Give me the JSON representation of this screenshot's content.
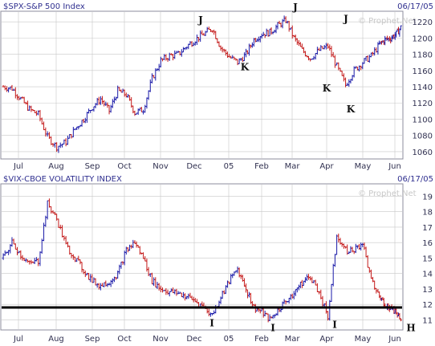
{
  "watermark": "© Prophet.Net",
  "x_labels": [
    "Jul",
    "Aug",
    "Sep",
    "Oct",
    "Nov",
    "Dec",
    "05",
    "Feb",
    "Mar",
    "Apr",
    "May",
    "Jun"
  ],
  "colors": {
    "up": "#1a1aa8",
    "down": "#c41a1a",
    "grid": "#c8c8c8",
    "frame": "#8c8c9c",
    "support_line": "#000000",
    "text": "#2f2f8f"
  },
  "chart_data": [
    {
      "type": "ohlc",
      "title": "$SPX-S&P 500 Index",
      "date": "06/17/05",
      "yticks": [
        1060,
        1080,
        1100,
        1120,
        1140,
        1160,
        1180,
        1200,
        1220
      ],
      "ylim": [
        1052,
        1233
      ],
      "points_per_month": [
        {
          "month": "Jul",
          "anchors": [
            1140,
            1138,
            1125,
            1112,
            1106
          ]
        },
        {
          "month": "Aug",
          "anchors": [
            1106,
            1078,
            1066,
            1072,
            1088
          ]
        },
        {
          "month": "Sep",
          "anchors": [
            1088,
            1100,
            1115,
            1125,
            1110
          ]
        },
        {
          "month": "Oct",
          "anchors": [
            1110,
            1135,
            1130,
            1108,
            1112
          ]
        },
        {
          "month": "Nov",
          "anchors": [
            1112,
            1150,
            1172,
            1178,
            1180
          ]
        },
        {
          "month": "Dec",
          "anchors": [
            1180,
            1190,
            1198,
            1205,
            1212
          ]
        },
        {
          "month": "05",
          "anchors": [
            1212,
            1188,
            1177,
            1170,
            1180
          ]
        },
        {
          "month": "Feb",
          "anchors": [
            1180,
            1198,
            1205,
            1207,
            1215
          ]
        },
        {
          "month": "Mar",
          "anchors": [
            1215,
            1222,
            1200,
            1185,
            1175
          ]
        },
        {
          "month": "Apr",
          "anchors": [
            1175,
            1185,
            1190,
            1165,
            1142
          ]
        },
        {
          "month": "May",
          "anchors": [
            1142,
            1160,
            1170,
            1178,
            1192
          ]
        },
        {
          "month": "Jun",
          "anchors": [
            1192,
            1198,
            1200,
            1205,
            1215
          ]
        }
      ],
      "annotations": [
        {
          "label": "J",
          "month": "Dec"
        },
        {
          "label": "K",
          "month": "05"
        },
        {
          "label": "J",
          "month": "Mar"
        },
        {
          "label": "K",
          "month": "Apr"
        },
        {
          "label": "J",
          "month": "Apr"
        },
        {
          "label": "K",
          "month": "Apr"
        }
      ]
    },
    {
      "type": "ohlc",
      "title": "$VIX-CBOE VOLATILITY INDEX",
      "date": "06/17/05",
      "yticks": [
        11,
        12,
        13,
        14,
        15,
        16,
        17,
        18,
        19
      ],
      "ylim": [
        10.4,
        19.8
      ],
      "support_line": 11.8,
      "points_per_month": [
        {
          "month": "Jul",
          "anchors": [
            15.0,
            16.0,
            15.2,
            14.6,
            14.8
          ]
        },
        {
          "month": "Aug",
          "anchors": [
            14.8,
            18.5,
            17.5,
            15.8,
            15.0
          ]
        },
        {
          "month": "Sep",
          "anchors": [
            15.0,
            14.2,
            13.5,
            13.2,
            13.5
          ]
        },
        {
          "month": "Oct",
          "anchors": [
            13.5,
            14.0,
            15.5,
            16.0,
            15.0
          ]
        },
        {
          "month": "Nov",
          "anchors": [
            15.0,
            13.5,
            13.0,
            12.8,
            12.7
          ]
        },
        {
          "month": "Dec",
          "anchors": [
            12.7,
            12.5,
            12.2,
            11.8,
            11.3
          ]
        },
        {
          "month": "05",
          "anchors": [
            11.3,
            12.5,
            13.5,
            14.3,
            13.0
          ]
        },
        {
          "month": "Feb",
          "anchors": [
            13.0,
            11.8,
            11.5,
            11.0,
            11.6
          ]
        },
        {
          "month": "Mar",
          "anchors": [
            11.6,
            12.2,
            12.8,
            13.4,
            13.8
          ]
        },
        {
          "month": "Apr",
          "anchors": [
            13.8,
            12.8,
            11.2,
            16.5,
            15.5
          ]
        },
        {
          "month": "May",
          "anchors": [
            15.5,
            15.5,
            16.0,
            13.5,
            12.5
          ]
        },
        {
          "month": "Jun",
          "anchors": [
            12.5,
            12.0,
            11.8,
            11.5,
            11.0
          ]
        }
      ],
      "annotations": [
        {
          "label": "I",
          "month": "Dec"
        },
        {
          "label": "I",
          "month": "Feb"
        },
        {
          "label": "I",
          "month": "Apr"
        },
        {
          "label": "H",
          "month": "Jun"
        }
      ]
    }
  ]
}
